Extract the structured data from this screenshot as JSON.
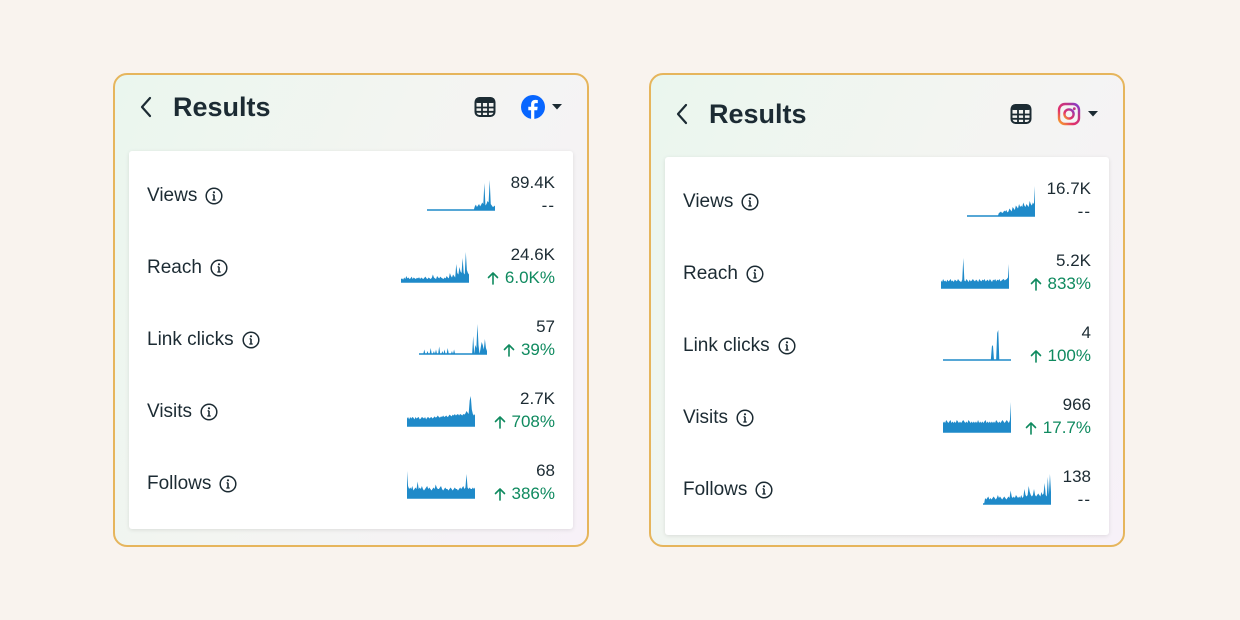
{
  "panels": [
    {
      "id": "fb",
      "title": "Results",
      "platform": "facebook-icon",
      "metrics": [
        {
          "label": "Views",
          "value": "89.4K",
          "change": "--",
          "trend": "none",
          "spark": [
            0,
            0,
            0,
            0,
            0,
            0,
            0,
            0,
            0,
            0,
            0,
            0,
            0,
            0,
            0,
            0,
            0,
            0,
            0,
            0,
            0,
            0,
            0,
            0,
            0,
            0,
            0,
            0,
            0,
            0,
            0,
            0,
            0,
            0,
            0,
            0,
            0,
            0,
            0,
            0,
            0,
            0,
            0,
            0,
            0,
            0.12,
            0.18,
            0.1,
            0.15,
            0.2,
            0.12,
            0.18,
            0.25,
            0.2,
            0.9,
            0.15,
            0.2,
            0.3,
            0.25,
            1.0,
            0.2,
            0.15,
            0.1,
            0.12,
            0.15
          ]
        },
        {
          "label": "Reach",
          "value": "24.6K",
          "change": "6.0K%",
          "trend": "up",
          "spark": [
            0.1,
            0.12,
            0.08,
            0.15,
            0.1,
            0.2,
            0.12,
            0.15,
            0.1,
            0.12,
            0.18,
            0.1,
            0.15,
            0.12,
            0.1,
            0.14,
            0.12,
            0.16,
            0.1,
            0.15,
            0.12,
            0.1,
            0.14,
            0.18,
            0.12,
            0.1,
            0.15,
            0.12,
            0.1,
            0.14,
            0.25,
            0.15,
            0.12,
            0.1,
            0.2,
            0.15,
            0.12,
            0.18,
            0.14,
            0.12,
            0.1,
            0.15,
            0.12,
            0.2,
            0.15,
            0.12,
            0.3,
            0.2,
            0.15,
            0.25,
            0.2,
            0.15,
            0.6,
            0.3,
            0.25,
            0.5,
            0.35,
            0.3,
            0.8,
            0.3,
            0.25,
            1.0,
            0.4,
            0.3,
            0.25
          ]
        },
        {
          "label": "Link clicks",
          "value": "57",
          "change": "39%",
          "trend": "up",
          "spark": [
            0,
            0,
            0,
            0,
            0,
            0.15,
            0,
            0,
            0.1,
            0,
            0,
            0.2,
            0,
            0,
            0.1,
            0,
            0.15,
            0,
            0,
            0.25,
            0,
            0,
            0.1,
            0,
            0.15,
            0,
            0,
            0.2,
            0,
            0,
            0,
            0.1,
            0,
            0.15,
            0,
            0,
            0,
            0,
            0,
            0,
            0,
            0,
            0,
            0,
            0,
            0,
            0,
            0,
            0,
            0,
            0,
            0.6,
            0,
            0.3,
            0.2,
            1.0,
            0.3,
            0,
            0.2,
            0.4,
            0.3,
            0.15,
            0.5,
            0.2,
            0.1
          ]
        },
        {
          "label": "Visits",
          "value": "2.7K",
          "change": "708%",
          "trend": "up",
          "spark": [
            0.25,
            0.3,
            0.22,
            0.3,
            0.25,
            0.3,
            0.28,
            0.22,
            0.3,
            0.25,
            0.28,
            0.3,
            0.22,
            0.25,
            0.3,
            0.28,
            0.25,
            0.3,
            0.22,
            0.28,
            0.3,
            0.25,
            0.28,
            0.3,
            0.25,
            0.28,
            0.32,
            0.28,
            0.3,
            0.35,
            0.3,
            0.28,
            0.32,
            0.3,
            0.35,
            0.3,
            0.32,
            0.35,
            0.3,
            0.32,
            0.38,
            0.35,
            0.32,
            0.38,
            0.35,
            0.4,
            0.35,
            0.38,
            0.4,
            0.35,
            0.4,
            0.38,
            0.35,
            0.4,
            0.38,
            0.42,
            0.5,
            0.45,
            0.4,
            0.85,
            1.0,
            0.55,
            0.4,
            0.35,
            0.4
          ]
        },
        {
          "label": "Follows",
          "value": "68",
          "change": "386%",
          "trend": "up",
          "spark": [
            0.9,
            0.4,
            0.3,
            0.35,
            0.3,
            0.4,
            0.25,
            0.3,
            0.35,
            0.3,
            0.55,
            0.3,
            0.35,
            0.3,
            0.4,
            0.3,
            0.25,
            0.3,
            0.35,
            0.4,
            0.3,
            0.35,
            0.3,
            0.25,
            0.3,
            0.35,
            0.3,
            0.45,
            0.35,
            0.3,
            0.3,
            0.35,
            0.4,
            0.3,
            0.25,
            0.3,
            0.35,
            0.3,
            0.3,
            0.25,
            0.3,
            0.35,
            0.3,
            0.25,
            0.3,
            0.35,
            0.3,
            0.3,
            0.25,
            0.3,
            0.35,
            0.3,
            0.35,
            0.4,
            0.3,
            0.35,
            0.8,
            0.35,
            0.3,
            0.35,
            0.3,
            0.3,
            0.35,
            0.3,
            0.35
          ]
        }
      ]
    },
    {
      "id": "ig",
      "title": "Results",
      "platform": "instagram-icon",
      "metrics": [
        {
          "label": "Views",
          "value": "16.7K",
          "change": "--",
          "trend": "none",
          "spark": [
            0,
            0,
            0,
            0,
            0,
            0,
            0,
            0,
            0,
            0,
            0,
            0,
            0,
            0,
            0,
            0,
            0,
            0,
            0,
            0,
            0,
            0,
            0,
            0,
            0,
            0,
            0,
            0,
            0,
            0,
            0.1,
            0.12,
            0.15,
            0.1,
            0.12,
            0.18,
            0.15,
            0.2,
            0.12,
            0.15,
            0.25,
            0.2,
            0.15,
            0.3,
            0.25,
            0.2,
            0.35,
            0.3,
            0.25,
            0.4,
            0.3,
            0.35,
            0.3,
            0.45,
            0.35,
            0.3,
            0.4,
            0.35,
            0.3,
            0.5,
            0.4,
            0.35,
            0.45,
            0.4,
            1.0
          ]
        },
        {
          "label": "Reach",
          "value": "5.2K",
          "change": "833%",
          "trend": "up",
          "spark": [
            0.25,
            0.2,
            0.3,
            0.22,
            0.25,
            0.2,
            0.28,
            0.22,
            0.25,
            0.3,
            0.22,
            0.25,
            0.2,
            0.28,
            0.25,
            0.22,
            0.3,
            0.25,
            0.22,
            0.2,
            0.28,
            1.0,
            0.25,
            0.22,
            0.3,
            0.25,
            0.2,
            0.28,
            0.22,
            0.25,
            0.3,
            0.25,
            0.22,
            0.28,
            0.25,
            0.2,
            0.3,
            0.25,
            0.22,
            0.28,
            0.25,
            0.3,
            0.22,
            0.25,
            0.28,
            0.22,
            0.3,
            0.25,
            0.2,
            0.28,
            0.25,
            0.3,
            0.22,
            0.28,
            0.25,
            0.3,
            0.22,
            0.25,
            0.28,
            0.3,
            0.25,
            0.28,
            0.3,
            0.35,
            0.8
          ]
        },
        {
          "label": "Link clicks",
          "value": "4",
          "change": "100%",
          "trend": "up",
          "spark": [
            0,
            0,
            0,
            0,
            0,
            0,
            0,
            0,
            0,
            0,
            0,
            0,
            0,
            0,
            0,
            0,
            0,
            0,
            0,
            0,
            0,
            0,
            0,
            0,
            0,
            0,
            0,
            0,
            0,
            0,
            0,
            0,
            0,
            0,
            0,
            0,
            0,
            0,
            0,
            0,
            0,
            0,
            0,
            0,
            0,
            0,
            0.45,
            0.5,
            0,
            0,
            0,
            0.9,
            1.0,
            0,
            0,
            0,
            0,
            0,
            0,
            0,
            0,
            0,
            0,
            0,
            0
          ]
        },
        {
          "label": "Visits",
          "value": "966",
          "change": "17.7%",
          "trend": "up",
          "spark": [
            0.3,
            0.35,
            0.3,
            0.4,
            0.35,
            0.3,
            0.35,
            0.4,
            0.3,
            0.35,
            0.3,
            0.35,
            0.3,
            0.4,
            0.35,
            0.3,
            0.35,
            0.3,
            0.35,
            0.4,
            0.35,
            0.3,
            0.35,
            0.3,
            0.4,
            0.35,
            0.3,
            0.35,
            0.3,
            0.35,
            0.3,
            0.35,
            0.3,
            0.4,
            0.3,
            0.35,
            0.3,
            0.35,
            0.3,
            0.35,
            0.4,
            0.3,
            0.35,
            0.3,
            0.35,
            0.3,
            0.35,
            0.3,
            0.35,
            0.3,
            0.4,
            0.35,
            0.3,
            0.35,
            0.3,
            0.35,
            0.4,
            0.35,
            0.3,
            0.35,
            0.4,
            0.35,
            0.3,
            0.4,
            1.0
          ]
        },
        {
          "label": "Follows",
          "value": "138",
          "change": "--",
          "trend": "none",
          "spark": [
            0,
            0,
            0.2,
            0.15,
            0.2,
            0.25,
            0.15,
            0.2,
            0.15,
            0.2,
            0.25,
            0.2,
            0.15,
            0.2,
            0.3,
            0.2,
            0.25,
            0.2,
            0.15,
            0.2,
            0.25,
            0.2,
            0.15,
            0.2,
            0.25,
            0.2,
            0.45,
            0.25,
            0.2,
            0.25,
            0.2,
            0.3,
            0.25,
            0.2,
            0.25,
            0.2,
            0.3,
            0.2,
            0.25,
            0.5,
            0.3,
            0.25,
            0.3,
            0.6,
            0.4,
            0.3,
            0.25,
            0.3,
            0.5,
            0.3,
            0.25,
            0.3,
            0.35,
            0.3,
            0.25,
            0.4,
            0.3,
            0.35,
            0.7,
            0.3,
            0.25,
            0.9,
            0.3,
            1.0,
            0.4
          ]
        }
      ]
    }
  ],
  "colors": {
    "spark": "#1f8ac9",
    "up": "#0f8a5f",
    "facebook": "#0866ff",
    "border": "#e6b55c"
  }
}
